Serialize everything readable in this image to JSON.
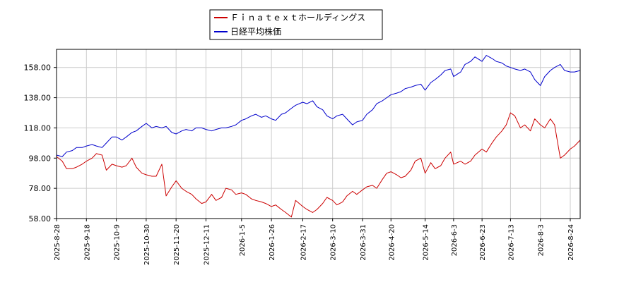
{
  "chart_data": {
    "type": "line",
    "title": "",
    "xlabel": "",
    "ylabel": "",
    "ylim": [
      58,
      170
    ],
    "yticks": [
      "58.00",
      "78.00",
      "98.00",
      "118.00",
      "138.00",
      "158.00"
    ],
    "ytick_values": [
      58,
      78,
      98,
      118,
      138,
      158
    ],
    "xticks": [
      "2025-8-28",
      "2025-9-18",
      "2025-10-9",
      "2025-10-30",
      "2025-11-20",
      "2025-12-11",
      "2026-1-5",
      "2026-1-26",
      "2026-2-17",
      "2026-3-10",
      "2026-3-31",
      "2026-4-20",
      "2026-5-14",
      "2026-6-3",
      "2026-6-23",
      "2026-7-13",
      "2026-8-3",
      "2026-8-24"
    ],
    "grid": true,
    "legend_position": "top-center",
    "series": [
      {
        "name": "Ｆｉｎａｔｅｘｔホールディングス",
        "color": "#cc0000",
        "values": [
          [
            "2025-8-28",
            99
          ],
          [
            "2025-9-1",
            96
          ],
          [
            "2025-9-4",
            91
          ],
          [
            "2025-9-8",
            91
          ],
          [
            "2025-9-11",
            92
          ],
          [
            "2025-9-15",
            94
          ],
          [
            "2025-9-18",
            96
          ],
          [
            "2025-9-22",
            98
          ],
          [
            "2025-9-25",
            101
          ],
          [
            "2025-9-29",
            100
          ],
          [
            "2025-10-2",
            90
          ],
          [
            "2025-10-6",
            94
          ],
          [
            "2025-10-9",
            93
          ],
          [
            "2025-10-13",
            92
          ],
          [
            "2025-10-16",
            93
          ],
          [
            "2025-10-20",
            98
          ],
          [
            "2025-10-23",
            92
          ],
          [
            "2025-10-27",
            88
          ],
          [
            "2025-10-30",
            87
          ],
          [
            "2025-11-3",
            86
          ],
          [
            "2025-11-6",
            86
          ],
          [
            "2025-11-10",
            94
          ],
          [
            "2025-11-13",
            73
          ],
          [
            "2025-11-17",
            79
          ],
          [
            "2025-11-20",
            83
          ],
          [
            "2025-11-24",
            78
          ],
          [
            "2025-11-27",
            76
          ],
          [
            "2025-12-1",
            74
          ],
          [
            "2025-12-4",
            71
          ],
          [
            "2025-12-8",
            68
          ],
          [
            "2025-12-11",
            69
          ],
          [
            "2025-12-15",
            74
          ],
          [
            "2025-12-18",
            70
          ],
          [
            "2025-12-22",
            72
          ],
          [
            "2025-12-25",
            78
          ],
          [
            "2025-12-29",
            77
          ],
          [
            "2026-1-1",
            74
          ],
          [
            "2026-1-5",
            75
          ],
          [
            "2026-1-8",
            74
          ],
          [
            "2026-1-12",
            71
          ],
          [
            "2026-1-15",
            70
          ],
          [
            "2026-1-19",
            69
          ],
          [
            "2026-1-22",
            68
          ],
          [
            "2026-1-26",
            66
          ],
          [
            "2026-1-29",
            67
          ],
          [
            "2026-2-2",
            64
          ],
          [
            "2026-2-5",
            62
          ],
          [
            "2026-2-9",
            59
          ],
          [
            "2026-2-12",
            70
          ],
          [
            "2026-2-17",
            66
          ],
          [
            "2026-2-20",
            64
          ],
          [
            "2026-2-24",
            62
          ],
          [
            "2026-2-27",
            64
          ],
          [
            "2026-3-3",
            68
          ],
          [
            "2026-3-6",
            72
          ],
          [
            "2026-3-10",
            70
          ],
          [
            "2026-3-13",
            67
          ],
          [
            "2026-3-17",
            69
          ],
          [
            "2026-3-20",
            73
          ],
          [
            "2026-3-24",
            76
          ],
          [
            "2026-3-27",
            74
          ],
          [
            "2026-3-31",
            77
          ],
          [
            "2026-4-3",
            79
          ],
          [
            "2026-4-7",
            80
          ],
          [
            "2026-4-10",
            78
          ],
          [
            "2026-4-14",
            84
          ],
          [
            "2026-4-17",
            88
          ],
          [
            "2026-4-20",
            89
          ],
          [
            "2026-4-24",
            87
          ],
          [
            "2026-4-27",
            85
          ],
          [
            "2026-4-30",
            86
          ],
          [
            "2026-5-4",
            90
          ],
          [
            "2026-5-7",
            96
          ],
          [
            "2026-5-11",
            98
          ],
          [
            "2026-5-14",
            88
          ],
          [
            "2026-5-18",
            95
          ],
          [
            "2026-5-21",
            91
          ],
          [
            "2026-5-25",
            93
          ],
          [
            "2026-5-28",
            98
          ],
          [
            "2026-6-1",
            102
          ],
          [
            "2026-6-3",
            94
          ],
          [
            "2026-6-8",
            96
          ],
          [
            "2026-6-11",
            94
          ],
          [
            "2026-6-15",
            96
          ],
          [
            "2026-6-18",
            100
          ],
          [
            "2026-6-23",
            104
          ],
          [
            "2026-6-26",
            102
          ],
          [
            "2026-6-30",
            108
          ],
          [
            "2026-7-3",
            112
          ],
          [
            "2026-7-7",
            116
          ],
          [
            "2026-7-10",
            120
          ],
          [
            "2026-7-13",
            128
          ],
          [
            "2026-7-16",
            126
          ],
          [
            "2026-7-20",
            118
          ],
          [
            "2026-7-23",
            120
          ],
          [
            "2026-7-27",
            116
          ],
          [
            "2026-7-30",
            124
          ],
          [
            "2026-8-3",
            120
          ],
          [
            "2026-8-6",
            118
          ],
          [
            "2026-8-10",
            124
          ],
          [
            "2026-8-13",
            120
          ],
          [
            "2026-8-17",
            98
          ],
          [
            "2026-8-20",
            100
          ],
          [
            "2026-8-24",
            104
          ],
          [
            "2026-8-27",
            106
          ],
          [
            "2026-8-31",
            110
          ]
        ]
      },
      {
        "name": "日経平均株価",
        "color": "#0000cc",
        "values": [
          [
            "2025-8-28",
            100
          ],
          [
            "2025-9-1",
            99
          ],
          [
            "2025-9-4",
            102
          ],
          [
            "2025-9-8",
            103
          ],
          [
            "2025-9-11",
            105
          ],
          [
            "2025-9-15",
            105
          ],
          [
            "2025-9-18",
            106
          ],
          [
            "2025-9-22",
            107
          ],
          [
            "2025-9-25",
            106
          ],
          [
            "2025-9-29",
            105
          ],
          [
            "2025-10-2",
            108
          ],
          [
            "2025-10-6",
            112
          ],
          [
            "2025-10-9",
            112
          ],
          [
            "2025-10-13",
            110
          ],
          [
            "2025-10-16",
            112
          ],
          [
            "2025-10-20",
            115
          ],
          [
            "2025-10-23",
            116
          ],
          [
            "2025-10-27",
            119
          ],
          [
            "2025-10-30",
            121
          ],
          [
            "2025-11-3",
            118
          ],
          [
            "2025-11-6",
            119
          ],
          [
            "2025-11-10",
            118
          ],
          [
            "2025-11-13",
            119
          ],
          [
            "2025-11-17",
            115
          ],
          [
            "2025-11-20",
            114
          ],
          [
            "2025-11-24",
            116
          ],
          [
            "2025-11-27",
            117
          ],
          [
            "2025-12-1",
            116
          ],
          [
            "2025-12-4",
            118
          ],
          [
            "2025-12-8",
            118
          ],
          [
            "2025-12-11",
            117
          ],
          [
            "2025-12-15",
            116
          ],
          [
            "2025-12-18",
            117
          ],
          [
            "2025-12-22",
            118
          ],
          [
            "2025-12-25",
            118
          ],
          [
            "2025-12-29",
            119
          ],
          [
            "2026-1-1",
            120
          ],
          [
            "2026-1-5",
            123
          ],
          [
            "2026-1-8",
            124
          ],
          [
            "2026-1-12",
            126
          ],
          [
            "2026-1-15",
            127
          ],
          [
            "2026-1-19",
            125
          ],
          [
            "2026-1-22",
            126
          ],
          [
            "2026-1-26",
            124
          ],
          [
            "2026-1-29",
            123
          ],
          [
            "2026-2-2",
            127
          ],
          [
            "2026-2-5",
            128
          ],
          [
            "2026-2-9",
            131
          ],
          [
            "2026-2-12",
            133
          ],
          [
            "2026-2-17",
            135
          ],
          [
            "2026-2-20",
            134
          ],
          [
            "2026-2-24",
            136
          ],
          [
            "2026-2-27",
            132
          ],
          [
            "2026-3-3",
            130
          ],
          [
            "2026-3-6",
            126
          ],
          [
            "2026-3-10",
            124
          ],
          [
            "2026-3-13",
            126
          ],
          [
            "2026-3-17",
            127
          ],
          [
            "2026-3-20",
            124
          ],
          [
            "2026-3-24",
            120
          ],
          [
            "2026-3-27",
            122
          ],
          [
            "2026-3-31",
            123
          ],
          [
            "2026-4-3",
            127
          ],
          [
            "2026-4-7",
            130
          ],
          [
            "2026-4-10",
            134
          ],
          [
            "2026-4-14",
            136
          ],
          [
            "2026-4-17",
            138
          ],
          [
            "2026-4-20",
            140
          ],
          [
            "2026-4-24",
            141
          ],
          [
            "2026-4-27",
            142
          ],
          [
            "2026-4-30",
            144
          ],
          [
            "2026-5-4",
            145
          ],
          [
            "2026-5-7",
            146
          ],
          [
            "2026-5-11",
            147
          ],
          [
            "2026-5-14",
            143
          ],
          [
            "2026-5-18",
            148
          ],
          [
            "2026-5-21",
            150
          ],
          [
            "2026-5-25",
            153
          ],
          [
            "2026-5-28",
            156
          ],
          [
            "2026-6-1",
            157
          ],
          [
            "2026-6-3",
            152
          ],
          [
            "2026-6-8",
            155
          ],
          [
            "2026-6-11",
            160
          ],
          [
            "2026-6-15",
            162
          ],
          [
            "2026-6-18",
            165
          ],
          [
            "2026-6-23",
            162
          ],
          [
            "2026-6-26",
            166
          ],
          [
            "2026-6-30",
            164
          ],
          [
            "2026-7-3",
            162
          ],
          [
            "2026-7-7",
            161
          ],
          [
            "2026-7-10",
            159
          ],
          [
            "2026-7-13",
            158
          ],
          [
            "2026-7-16",
            157
          ],
          [
            "2026-7-20",
            156
          ],
          [
            "2026-7-23",
            157
          ],
          [
            "2026-7-27",
            155
          ],
          [
            "2026-7-30",
            150
          ],
          [
            "2026-8-3",
            146
          ],
          [
            "2026-8-6",
            152
          ],
          [
            "2026-8-10",
            156
          ],
          [
            "2026-8-13",
            158
          ],
          [
            "2026-8-17",
            160
          ],
          [
            "2026-8-20",
            156
          ],
          [
            "2026-8-24",
            155
          ],
          [
            "2026-8-27",
            155
          ],
          [
            "2026-8-31",
            156
          ]
        ]
      }
    ]
  }
}
